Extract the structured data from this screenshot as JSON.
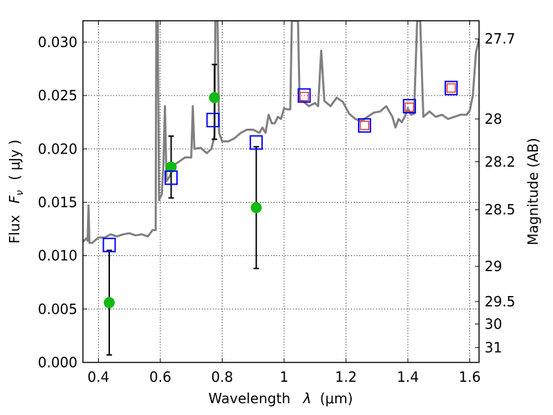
{
  "chart_data": {
    "type": "scatter",
    "xlabel_main": "Wavelength",
    "xlabel_symbol": "λ",
    "xlabel_unit": "(μm)",
    "ylabel_main": "Flux",
    "ylabel_symbol": "F",
    "ylabel_subscript": "ν",
    "ylabel_unit": "( μJy )",
    "ylabel_right": "Magnitude (AB)",
    "xlim": [
      0.35,
      1.63
    ],
    "ylim": [
      0.0,
      0.032
    ],
    "grid": true,
    "x_ticks": [
      0.4,
      0.6,
      0.8,
      1.0,
      1.2,
      1.4,
      1.6
    ],
    "x_tick_labels": [
      "0.4",
      "0.6",
      "0.8",
      "1",
      "1.2",
      "1.4",
      "1.6"
    ],
    "y_ticks": [
      0.0,
      0.005,
      0.01,
      0.015,
      0.02,
      0.025,
      0.03
    ],
    "y_tick_labels": [
      "0.000",
      "0.005",
      "0.010",
      "0.015",
      "0.020",
      "0.025",
      "0.030"
    ],
    "right_ticks": [
      {
        "label": "27.7",
        "flux": 0.0303
      },
      {
        "label": "28",
        "flux": 0.0228
      },
      {
        "label": "28.2",
        "flux": 0.0188
      },
      {
        "label": "28.5",
        "flux": 0.0143
      },
      {
        "label": "29",
        "flux": 0.009
      },
      {
        "label": "29.5",
        "flux": 0.0057
      },
      {
        "label": "30",
        "flux": 0.0036
      },
      {
        "label": "31",
        "flux": 0.0014
      }
    ],
    "series": [
      {
        "kind": "line",
        "color": "#808080",
        "points": [
          [
            0.35,
            0.0113
          ],
          [
            0.36,
            0.0116
          ],
          [
            0.365,
            0.0114
          ],
          [
            0.368,
            0.0147
          ],
          [
            0.371,
            0.0112
          ],
          [
            0.38,
            0.0112
          ],
          [
            0.4,
            0.0117
          ],
          [
            0.42,
            0.0117
          ],
          [
            0.44,
            0.012
          ],
          [
            0.46,
            0.0118
          ],
          [
            0.48,
            0.012
          ],
          [
            0.5,
            0.0121
          ],
          [
            0.52,
            0.0119
          ],
          [
            0.54,
            0.012
          ],
          [
            0.56,
            0.0118
          ],
          [
            0.575,
            0.0124
          ],
          [
            0.585,
            0.0124
          ],
          [
            0.587,
            0.032
          ],
          [
            0.592,
            0.032
          ],
          [
            0.596,
            0.0152
          ],
          [
            0.605,
            0.0158
          ],
          [
            0.61,
            0.0185
          ],
          [
            0.615,
            0.024
          ],
          [
            0.62,
            0.017
          ],
          [
            0.63,
            0.0174
          ],
          [
            0.645,
            0.0185
          ],
          [
            0.66,
            0.0188
          ],
          [
            0.68,
            0.0192
          ],
          [
            0.7,
            0.0192
          ],
          [
            0.705,
            0.024
          ],
          [
            0.71,
            0.02
          ],
          [
            0.73,
            0.0201
          ],
          [
            0.75,
            0.0196
          ],
          [
            0.765,
            0.02
          ],
          [
            0.775,
            0.0212
          ],
          [
            0.778,
            0.032
          ],
          [
            0.785,
            0.032
          ],
          [
            0.79,
            0.0215
          ],
          [
            0.8,
            0.0207
          ],
          [
            0.82,
            0.0207
          ],
          [
            0.84,
            0.021
          ],
          [
            0.86,
            0.0215
          ],
          [
            0.88,
            0.0218
          ],
          [
            0.9,
            0.0218
          ],
          [
            0.92,
            0.0215
          ],
          [
            0.93,
            0.022
          ],
          [
            0.94,
            0.0215
          ],
          [
            0.95,
            0.0232
          ],
          [
            0.96,
            0.0224
          ],
          [
            0.97,
            0.0224
          ],
          [
            0.98,
            0.023
          ],
          [
            0.99,
            0.0228
          ],
          [
            1.0,
            0.0238
          ],
          [
            1.01,
            0.0237
          ],
          [
            1.02,
            0.0237
          ],
          [
            1.025,
            0.032
          ],
          [
            1.035,
            0.032
          ],
          [
            1.045,
            0.032
          ],
          [
            1.05,
            0.0245
          ],
          [
            1.06,
            0.0245
          ],
          [
            1.08,
            0.024
          ],
          [
            1.1,
            0.0243
          ],
          [
            1.11,
            0.024
          ],
          [
            1.12,
            0.0292
          ],
          [
            1.13,
            0.0245
          ],
          [
            1.15,
            0.024
          ],
          [
            1.17,
            0.0248
          ],
          [
            1.19,
            0.0244
          ],
          [
            1.21,
            0.0233
          ],
          [
            1.23,
            0.0228
          ],
          [
            1.25,
            0.0226
          ],
          [
            1.27,
            0.023
          ],
          [
            1.29,
            0.0234
          ],
          [
            1.31,
            0.0235
          ],
          [
            1.33,
            0.024
          ],
          [
            1.35,
            0.023
          ],
          [
            1.36,
            0.022
          ],
          [
            1.37,
            0.0228
          ],
          [
            1.38,
            0.0225
          ],
          [
            1.39,
            0.023
          ],
          [
            1.4,
            0.0238
          ],
          [
            1.41,
            0.0232
          ],
          [
            1.42,
            0.0233
          ],
          [
            1.43,
            0.032
          ],
          [
            1.44,
            0.032
          ],
          [
            1.45,
            0.023
          ],
          [
            1.47,
            0.0235
          ],
          [
            1.49,
            0.023
          ],
          [
            1.51,
            0.0232
          ],
          [
            1.53,
            0.0228
          ],
          [
            1.55,
            0.023
          ],
          [
            1.57,
            0.0232
          ],
          [
            1.59,
            0.0232
          ],
          [
            1.6,
            0.0236
          ],
          [
            1.61,
            0.025
          ],
          [
            1.62,
            0.029
          ],
          [
            1.63,
            0.0303
          ]
        ]
      },
      {
        "kind": "points",
        "marker": "circle",
        "color": "#13b913",
        "points": [
          [
            0.435,
            0.0056
          ],
          [
            0.635,
            0.0183
          ],
          [
            0.775,
            0.0248
          ],
          [
            0.91,
            0.0145
          ]
        ],
        "yerr_lower": [
          0.0049,
          0.0029,
          0.0039,
          0.0057
        ],
        "yerr_upper": [
          0.0049,
          0.0029,
          0.0031,
          0.0057
        ]
      },
      {
        "kind": "points",
        "marker": "square",
        "color": "#0000ff",
        "points": [
          [
            0.435,
            0.011
          ],
          [
            0.635,
            0.0173
          ],
          [
            0.77,
            0.0227
          ],
          [
            0.91,
            0.0206
          ],
          [
            1.065,
            0.025
          ],
          [
            1.26,
            0.0222
          ],
          [
            1.405,
            0.024
          ],
          [
            1.54,
            0.0257
          ]
        ]
      },
      {
        "kind": "points",
        "marker": "square-small",
        "color": "#e8332d",
        "points": [
          [
            1.065,
            0.0249
          ],
          [
            1.26,
            0.0222
          ],
          [
            1.405,
            0.0239
          ],
          [
            1.54,
            0.0257
          ]
        ]
      }
    ]
  }
}
